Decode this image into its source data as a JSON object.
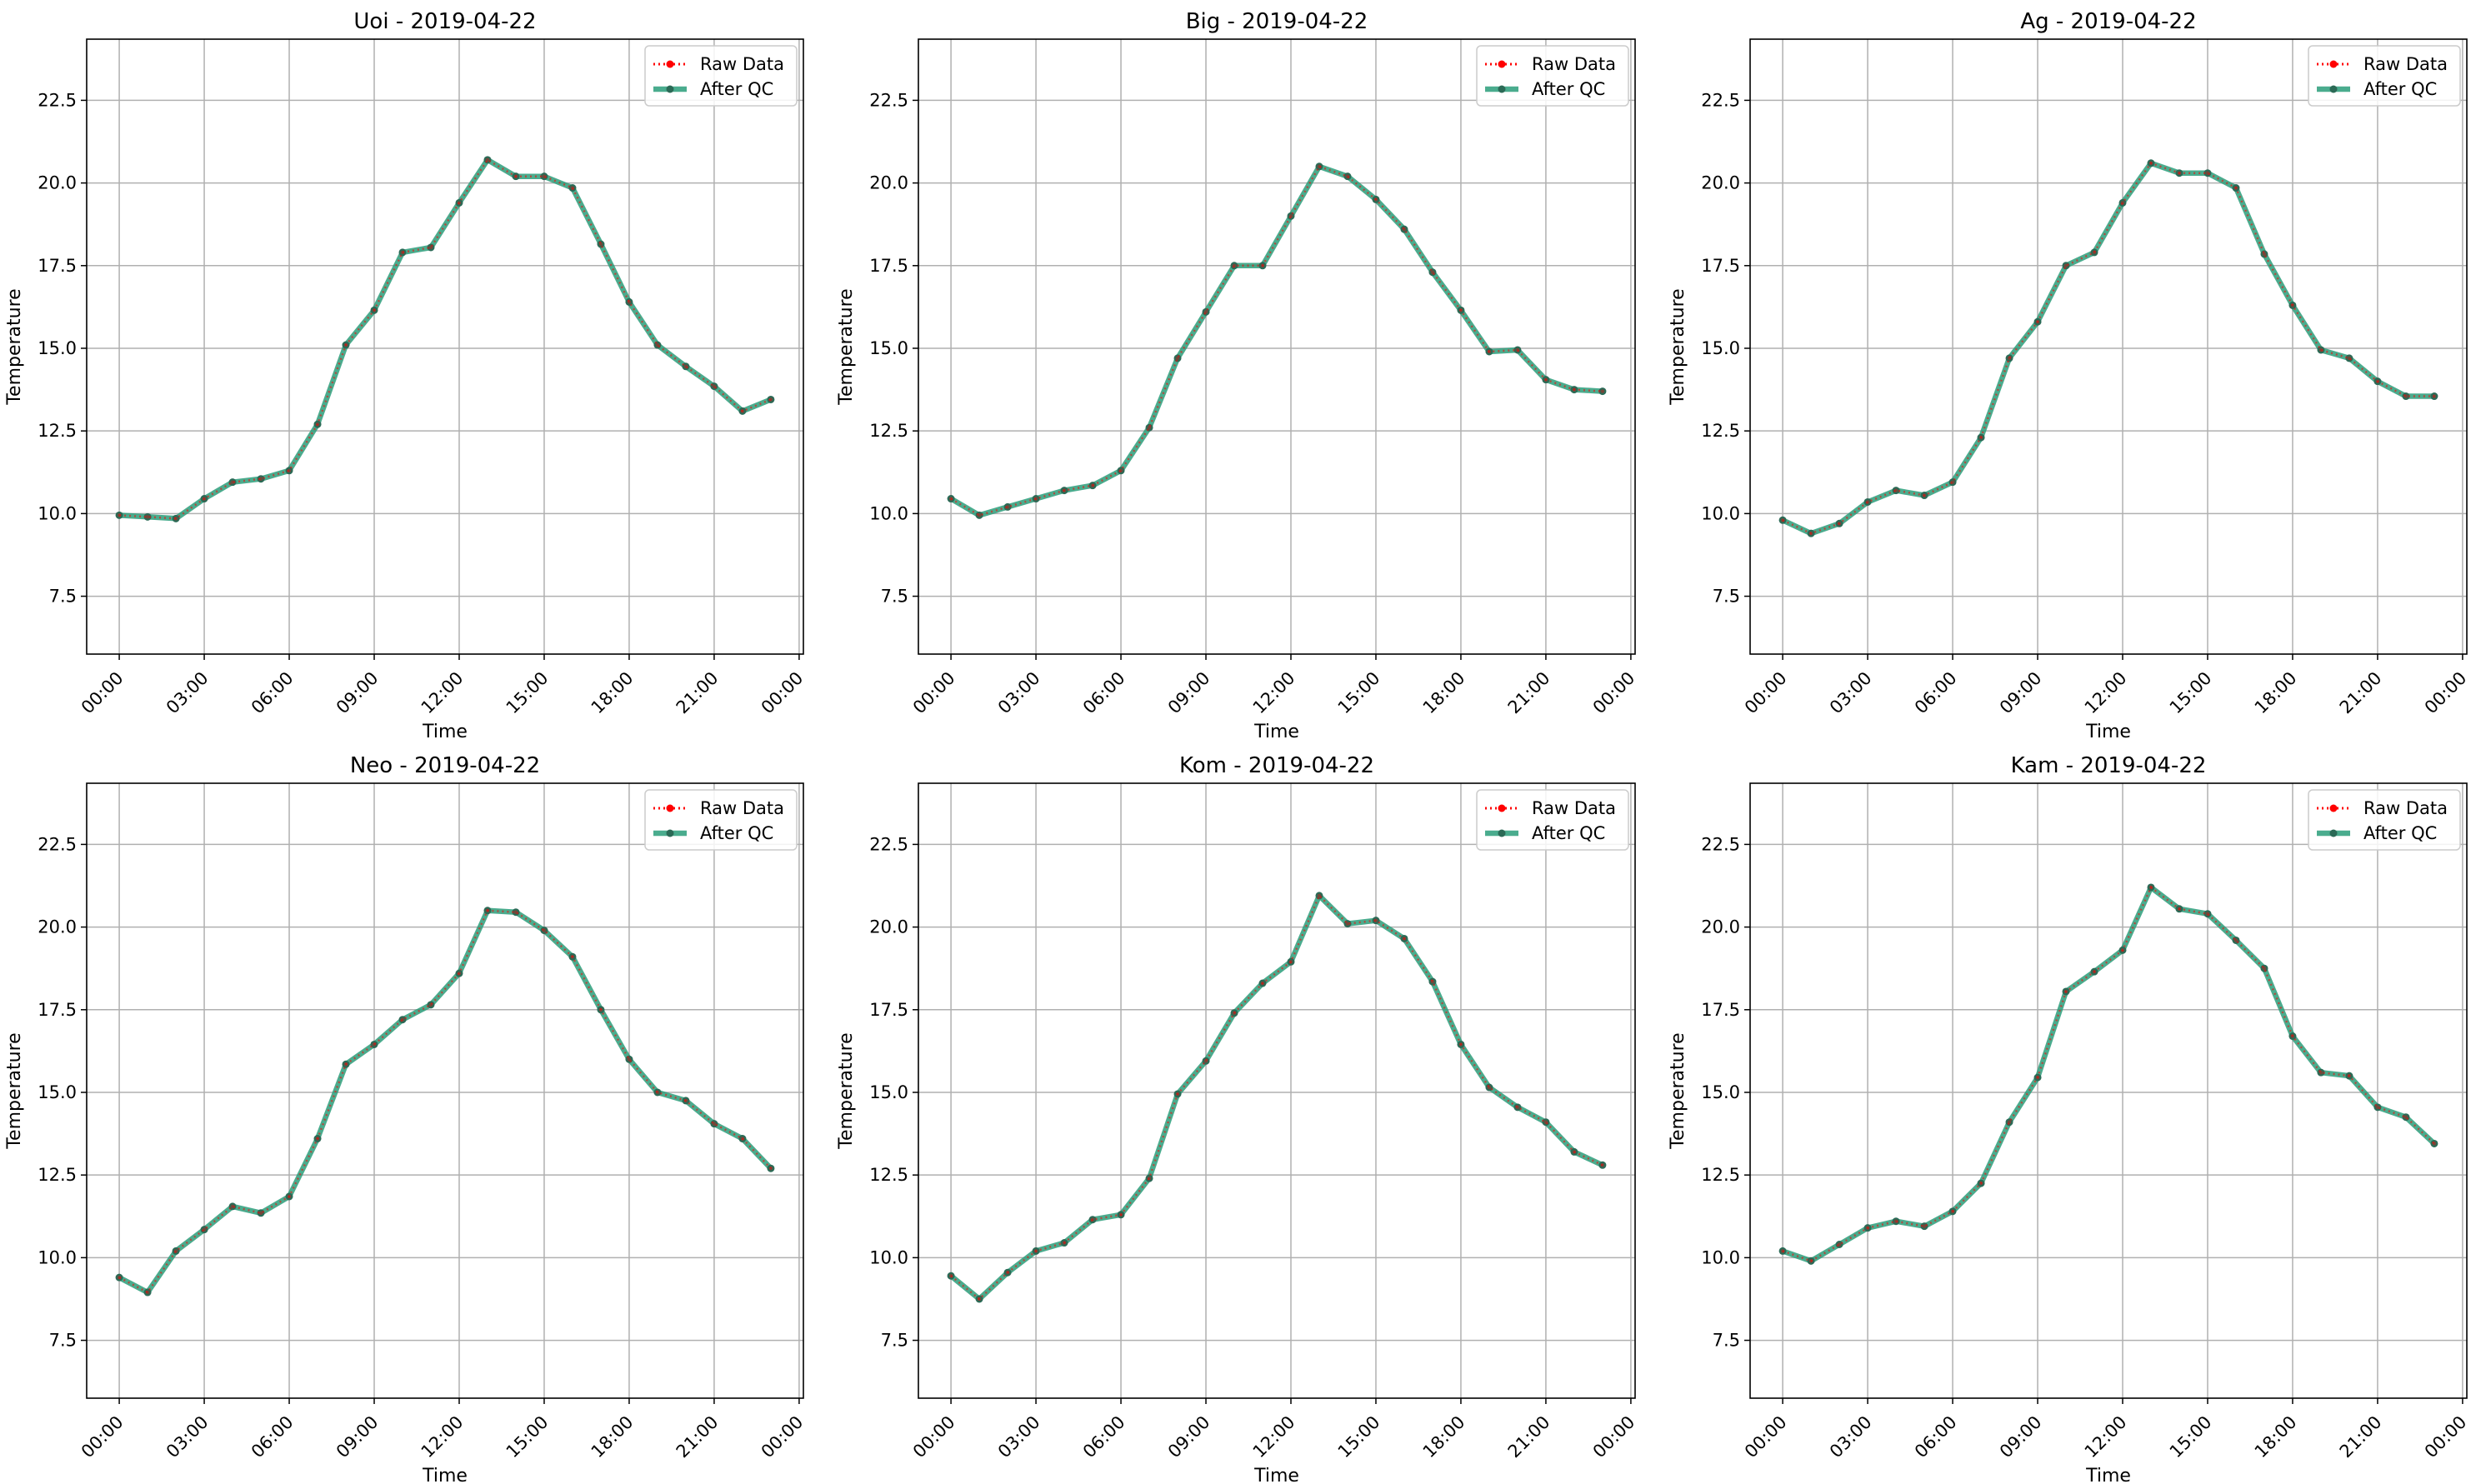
{
  "figure": {
    "colors": {
      "raw": "#ff0000",
      "qc": "#2a9d7a",
      "marker": "#2b6a56",
      "grid": "#b0b0b0",
      "axes": "#000000",
      "background": "#ffffff"
    }
  },
  "chart_data": [
    {
      "type": "line",
      "title": "Uoi - 2019-04-22",
      "xlabel": "Time",
      "ylabel": "Temperature",
      "x": [
        "00:00",
        "01:00",
        "02:00",
        "03:00",
        "04:00",
        "05:00",
        "06:00",
        "07:00",
        "08:00",
        "09:00",
        "10:00",
        "11:00",
        "12:00",
        "13:00",
        "14:00",
        "15:00",
        "16:00",
        "17:00",
        "18:00",
        "19:00",
        "20:00",
        "21:00",
        "22:00",
        "23:00"
      ],
      "xticks": [
        "00:00",
        "03:00",
        "06:00",
        "09:00",
        "12:00",
        "15:00",
        "18:00",
        "21:00",
        "00:00"
      ],
      "ylim": [
        5.75,
        24.35
      ],
      "yticks": [
        "7.5",
        "10.0",
        "12.5",
        "15.0",
        "17.5",
        "20.0",
        "22.5"
      ],
      "grid": true,
      "legend": "upper right",
      "series": [
        {
          "name": "Raw Data",
          "style": "dotted",
          "color": "#ff0000",
          "values": [
            9.95,
            9.9,
            9.85,
            10.45,
            10.95,
            11.05,
            11.3,
            12.7,
            15.1,
            16.15,
            17.9,
            18.05,
            19.4,
            20.7,
            20.2,
            20.2,
            19.85,
            18.15,
            16.4,
            15.1,
            14.45,
            13.85,
            13.1,
            13.45
          ]
        },
        {
          "name": "After QC",
          "style": "solid",
          "color": "#2a9d7a",
          "values": [
            9.95,
            9.9,
            9.85,
            10.45,
            10.95,
            11.05,
            11.3,
            12.7,
            15.1,
            16.15,
            17.9,
            18.05,
            19.4,
            20.7,
            20.2,
            20.2,
            19.85,
            18.15,
            16.4,
            15.1,
            14.45,
            13.85,
            13.1,
            13.45
          ]
        }
      ]
    },
    {
      "type": "line",
      "title": "Big - 2019-04-22",
      "xlabel": "Time",
      "ylabel": "Temperature",
      "x": [
        "00:00",
        "01:00",
        "02:00",
        "03:00",
        "04:00",
        "05:00",
        "06:00",
        "07:00",
        "08:00",
        "09:00",
        "10:00",
        "11:00",
        "12:00",
        "13:00",
        "14:00",
        "15:00",
        "16:00",
        "17:00",
        "18:00",
        "19:00",
        "20:00",
        "21:00",
        "22:00",
        "23:00"
      ],
      "xticks": [
        "00:00",
        "03:00",
        "06:00",
        "09:00",
        "12:00",
        "15:00",
        "18:00",
        "21:00",
        "00:00"
      ],
      "ylim": [
        5.75,
        24.35
      ],
      "yticks": [
        "7.5",
        "10.0",
        "12.5",
        "15.0",
        "17.5",
        "20.0",
        "22.5"
      ],
      "grid": true,
      "legend": "upper right",
      "series": [
        {
          "name": "Raw Data",
          "style": "dotted",
          "color": "#ff0000",
          "values": [
            10.45,
            9.95,
            10.2,
            10.45,
            10.7,
            10.85,
            11.3,
            12.6,
            14.7,
            16.1,
            17.5,
            17.5,
            19.0,
            20.5,
            20.2,
            19.5,
            18.6,
            17.3,
            16.15,
            14.9,
            14.95,
            14.05,
            13.75,
            13.7
          ]
        },
        {
          "name": "After QC",
          "style": "solid",
          "color": "#2a9d7a",
          "values": [
            10.45,
            9.95,
            10.2,
            10.45,
            10.7,
            10.85,
            11.3,
            12.6,
            14.7,
            16.1,
            17.5,
            17.5,
            19.0,
            20.5,
            20.2,
            19.5,
            18.6,
            17.3,
            16.15,
            14.9,
            14.95,
            14.05,
            13.75,
            13.7
          ]
        }
      ]
    },
    {
      "type": "line",
      "title": "Ag - 2019-04-22",
      "xlabel": "Time",
      "ylabel": "Temperature",
      "x": [
        "00:00",
        "01:00",
        "02:00",
        "03:00",
        "04:00",
        "05:00",
        "06:00",
        "07:00",
        "08:00",
        "09:00",
        "10:00",
        "11:00",
        "12:00",
        "13:00",
        "14:00",
        "15:00",
        "16:00",
        "17:00",
        "18:00",
        "19:00",
        "20:00",
        "21:00",
        "22:00",
        "23:00"
      ],
      "xticks": [
        "00:00",
        "03:00",
        "06:00",
        "09:00",
        "12:00",
        "15:00",
        "18:00",
        "21:00",
        "00:00"
      ],
      "ylim": [
        5.75,
        24.35
      ],
      "yticks": [
        "7.5",
        "10.0",
        "12.5",
        "15.0",
        "17.5",
        "20.0",
        "22.5"
      ],
      "grid": true,
      "legend": "upper right",
      "series": [
        {
          "name": "Raw Data",
          "style": "dotted",
          "color": "#ff0000",
          "values": [
            9.8,
            9.4,
            9.7,
            10.35,
            10.7,
            10.55,
            10.95,
            12.3,
            14.7,
            15.8,
            17.5,
            17.9,
            19.4,
            20.6,
            20.3,
            20.3,
            19.85,
            17.85,
            16.3,
            14.95,
            14.7,
            14.0,
            13.55,
            13.55
          ]
        },
        {
          "name": "After QC",
          "style": "solid",
          "color": "#2a9d7a",
          "values": [
            9.8,
            9.4,
            9.7,
            10.35,
            10.7,
            10.55,
            10.95,
            12.3,
            14.7,
            15.8,
            17.5,
            17.9,
            19.4,
            20.6,
            20.3,
            20.3,
            19.85,
            17.85,
            16.3,
            14.95,
            14.7,
            14.0,
            13.55,
            13.55
          ]
        }
      ]
    },
    {
      "type": "line",
      "title": "Neo - 2019-04-22",
      "xlabel": "Time",
      "ylabel": "Temperature",
      "x": [
        "00:00",
        "01:00",
        "02:00",
        "03:00",
        "04:00",
        "05:00",
        "06:00",
        "07:00",
        "08:00",
        "09:00",
        "10:00",
        "11:00",
        "12:00",
        "13:00",
        "14:00",
        "15:00",
        "16:00",
        "17:00",
        "18:00",
        "19:00",
        "20:00",
        "21:00",
        "22:00",
        "23:00"
      ],
      "xticks": [
        "00:00",
        "03:00",
        "06:00",
        "09:00",
        "12:00",
        "15:00",
        "18:00",
        "21:00",
        "00:00"
      ],
      "ylim": [
        5.75,
        24.35
      ],
      "yticks": [
        "7.5",
        "10.0",
        "12.5",
        "15.0",
        "17.5",
        "20.0",
        "22.5"
      ],
      "grid": true,
      "legend": "upper right",
      "series": [
        {
          "name": "Raw Data",
          "style": "dotted",
          "color": "#ff0000",
          "values": [
            9.4,
            8.95,
            10.2,
            10.85,
            11.55,
            11.35,
            11.85,
            13.6,
            15.85,
            16.45,
            17.2,
            17.65,
            18.6,
            20.5,
            20.45,
            19.9,
            19.1,
            17.5,
            16.0,
            15.0,
            14.75,
            14.05,
            13.6,
            12.7
          ]
        },
        {
          "name": "After QC",
          "style": "solid",
          "color": "#2a9d7a",
          "values": [
            9.4,
            8.95,
            10.2,
            10.85,
            11.55,
            11.35,
            11.85,
            13.6,
            15.85,
            16.45,
            17.2,
            17.65,
            18.6,
            20.5,
            20.45,
            19.9,
            19.1,
            17.5,
            16.0,
            15.0,
            14.75,
            14.05,
            13.6,
            12.7
          ]
        }
      ]
    },
    {
      "type": "line",
      "title": "Kom - 2019-04-22",
      "xlabel": "Time",
      "ylabel": "Temperature",
      "x": [
        "00:00",
        "01:00",
        "02:00",
        "03:00",
        "04:00",
        "05:00",
        "06:00",
        "07:00",
        "08:00",
        "09:00",
        "10:00",
        "11:00",
        "12:00",
        "13:00",
        "14:00",
        "15:00",
        "16:00",
        "17:00",
        "18:00",
        "19:00",
        "20:00",
        "21:00",
        "22:00",
        "23:00"
      ],
      "xticks": [
        "00:00",
        "03:00",
        "06:00",
        "09:00",
        "12:00",
        "15:00",
        "18:00",
        "21:00",
        "00:00"
      ],
      "ylim": [
        5.75,
        24.35
      ],
      "yticks": [
        "7.5",
        "10.0",
        "12.5",
        "15.0",
        "17.5",
        "20.0",
        "22.5"
      ],
      "grid": true,
      "legend": "upper right",
      "series": [
        {
          "name": "Raw Data",
          "style": "dotted",
          "color": "#ff0000",
          "values": [
            9.45,
            8.75,
            9.55,
            10.2,
            10.45,
            11.15,
            11.3,
            12.4,
            14.95,
            15.95,
            17.4,
            18.3,
            18.95,
            20.95,
            20.1,
            20.2,
            19.65,
            18.35,
            16.45,
            15.15,
            14.55,
            14.1,
            13.2,
            12.8
          ]
        },
        {
          "name": "After QC",
          "style": "solid",
          "color": "#2a9d7a",
          "values": [
            9.45,
            8.75,
            9.55,
            10.2,
            10.45,
            11.15,
            11.3,
            12.4,
            14.95,
            15.95,
            17.4,
            18.3,
            18.95,
            20.95,
            20.1,
            20.2,
            19.65,
            18.35,
            16.45,
            15.15,
            14.55,
            14.1,
            13.2,
            12.8
          ]
        }
      ]
    },
    {
      "type": "line",
      "title": "Kam - 2019-04-22",
      "xlabel": "Time",
      "ylabel": "Temperature",
      "x": [
        "00:00",
        "01:00",
        "02:00",
        "03:00",
        "04:00",
        "05:00",
        "06:00",
        "07:00",
        "08:00",
        "09:00",
        "10:00",
        "11:00",
        "12:00",
        "13:00",
        "14:00",
        "15:00",
        "16:00",
        "17:00",
        "18:00",
        "19:00",
        "20:00",
        "21:00",
        "22:00",
        "23:00"
      ],
      "xticks": [
        "00:00",
        "03:00",
        "06:00",
        "09:00",
        "12:00",
        "15:00",
        "18:00",
        "21:00",
        "00:00"
      ],
      "ylim": [
        5.75,
        24.35
      ],
      "yticks": [
        "7.5",
        "10.0",
        "12.5",
        "15.0",
        "17.5",
        "20.0",
        "22.5"
      ],
      "grid": true,
      "legend": "upper right",
      "series": [
        {
          "name": "Raw Data",
          "style": "dotted",
          "color": "#ff0000",
          "values": [
            10.2,
            9.9,
            10.4,
            10.9,
            11.1,
            10.95,
            11.4,
            12.25,
            14.1,
            15.45,
            18.05,
            18.65,
            19.3,
            21.2,
            20.55,
            20.4,
            19.6,
            18.75,
            16.7,
            15.6,
            15.5,
            14.55,
            14.25,
            13.45
          ]
        },
        {
          "name": "After QC",
          "style": "solid",
          "color": "#2a9d7a",
          "values": [
            10.2,
            9.9,
            10.4,
            10.9,
            11.1,
            10.95,
            11.4,
            12.25,
            14.1,
            15.45,
            18.05,
            18.65,
            19.3,
            21.2,
            20.55,
            20.4,
            19.6,
            18.75,
            16.7,
            15.6,
            15.5,
            14.55,
            14.25,
            13.45
          ]
        }
      ]
    }
  ]
}
